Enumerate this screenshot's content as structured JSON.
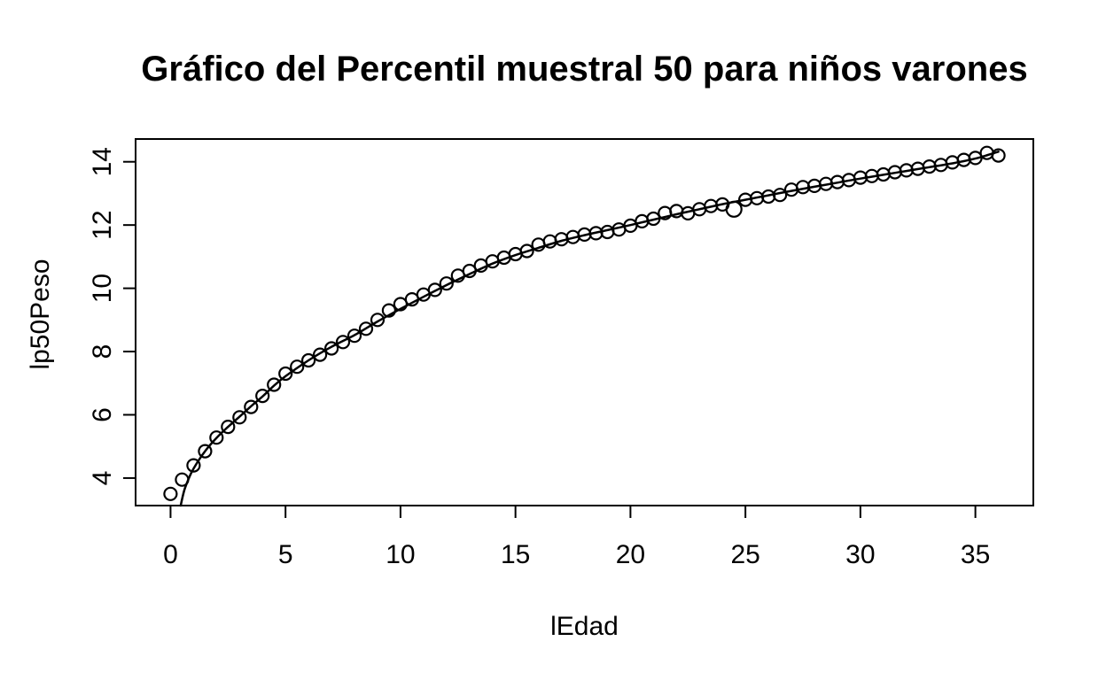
{
  "chart": {
    "title": "Gráfico del Percentil muestral 50 para niños varones",
    "xlabel": "lEdad",
    "ylabel": "lp50Peso"
  },
  "chart_data": {
    "type": "scatter",
    "title": "Gráfico del Percentil muestral 50 para niños varones",
    "xlabel": "lEdad",
    "ylabel": "lp50Peso",
    "x_ticks": [
      0,
      5,
      10,
      15,
      20,
      25,
      30,
      35
    ],
    "y_ticks": [
      4,
      6,
      8,
      10,
      12,
      14
    ],
    "xlim": [
      -1.52,
      37.52
    ],
    "ylim": [
      3.13,
      14.72
    ],
    "grid": false,
    "legend_position": "none",
    "axis_color": "#000000",
    "background": "#ffffff",
    "series": [
      {
        "name": "sample-percentile-50-points",
        "type": "points",
        "marker": "open-circle",
        "color": "#000000",
        "marker_radius": 7,
        "outlier": {
          "x": 24.5,
          "radius": 8.5
        },
        "points": [
          [
            0,
            3.5
          ],
          [
            0.5,
            3.95
          ],
          [
            1,
            4.4
          ],
          [
            1.5,
            4.85
          ],
          [
            2,
            5.28
          ],
          [
            2.5,
            5.62
          ],
          [
            3,
            5.92
          ],
          [
            3.5,
            6.25
          ],
          [
            4,
            6.6
          ],
          [
            4.5,
            6.95
          ],
          [
            5,
            7.3
          ],
          [
            5.5,
            7.52
          ],
          [
            6,
            7.72
          ],
          [
            6.5,
            7.9
          ],
          [
            7,
            8.1
          ],
          [
            7.5,
            8.3
          ],
          [
            8,
            8.5
          ],
          [
            8.5,
            8.72
          ],
          [
            9,
            9.0
          ],
          [
            9.5,
            9.3
          ],
          [
            10,
            9.5
          ],
          [
            10.5,
            9.65
          ],
          [
            11,
            9.8
          ],
          [
            11.5,
            9.95
          ],
          [
            12,
            10.15
          ],
          [
            12.5,
            10.4
          ],
          [
            13,
            10.55
          ],
          [
            13.5,
            10.72
          ],
          [
            14,
            10.85
          ],
          [
            14.5,
            10.97
          ],
          [
            15,
            11.08
          ],
          [
            15.5,
            11.18
          ],
          [
            16,
            11.38
          ],
          [
            16.5,
            11.48
          ],
          [
            17,
            11.55
          ],
          [
            17.5,
            11.62
          ],
          [
            18,
            11.7
          ],
          [
            18.5,
            11.74
          ],
          [
            19,
            11.78
          ],
          [
            19.5,
            11.86
          ],
          [
            20,
            11.98
          ],
          [
            20.5,
            12.12
          ],
          [
            21,
            12.2
          ],
          [
            21.5,
            12.38
          ],
          [
            22,
            12.44
          ],
          [
            22.5,
            12.37
          ],
          [
            23,
            12.5
          ],
          [
            23.5,
            12.6
          ],
          [
            24,
            12.65
          ],
          [
            24.5,
            12.5
          ],
          [
            25,
            12.8
          ],
          [
            25.5,
            12.85
          ],
          [
            26,
            12.9
          ],
          [
            26.5,
            12.95
          ],
          [
            27,
            13.12
          ],
          [
            27.5,
            13.2
          ],
          [
            28,
            13.24
          ],
          [
            28.5,
            13.3
          ],
          [
            29,
            13.36
          ],
          [
            29.5,
            13.42
          ],
          [
            30,
            13.5
          ],
          [
            30.5,
            13.55
          ],
          [
            31,
            13.6
          ],
          [
            31.5,
            13.67
          ],
          [
            32,
            13.73
          ],
          [
            32.5,
            13.78
          ],
          [
            33,
            13.85
          ],
          [
            33.5,
            13.9
          ],
          [
            34,
            13.98
          ],
          [
            34.5,
            14.06
          ],
          [
            35,
            14.12
          ],
          [
            35.5,
            14.28
          ],
          [
            36,
            14.2
          ]
        ]
      },
      {
        "name": "fitted-curve",
        "type": "line",
        "color": "#000000",
        "line_width": 2.5,
        "points": [
          [
            0.44,
            3.13
          ],
          [
            0.6,
            3.62
          ],
          [
            0.8,
            4.0
          ],
          [
            1,
            4.3
          ],
          [
            1.5,
            4.85
          ],
          [
            2,
            5.27
          ],
          [
            2.5,
            5.62
          ],
          [
            3,
            5.94
          ],
          [
            3.5,
            6.27
          ],
          [
            4,
            6.58
          ],
          [
            4.5,
            6.92
          ],
          [
            5,
            7.22
          ],
          [
            6,
            7.72
          ],
          [
            7,
            8.15
          ],
          [
            8,
            8.52
          ],
          [
            9,
            8.95
          ],
          [
            10,
            9.35
          ],
          [
            11,
            9.73
          ],
          [
            12,
            10.1
          ],
          [
            13,
            10.45
          ],
          [
            14,
            10.78
          ],
          [
            15,
            11.05
          ],
          [
            16,
            11.28
          ],
          [
            17,
            11.5
          ],
          [
            18,
            11.68
          ],
          [
            19,
            11.84
          ],
          [
            20,
            12.0
          ],
          [
            21,
            12.17
          ],
          [
            22,
            12.34
          ],
          [
            23,
            12.5
          ],
          [
            24,
            12.66
          ],
          [
            25,
            12.8
          ],
          [
            26,
            12.94
          ],
          [
            27,
            13.08
          ],
          [
            28,
            13.21
          ],
          [
            29,
            13.34
          ],
          [
            30,
            13.47
          ],
          [
            31,
            13.59
          ],
          [
            32,
            13.71
          ],
          [
            33,
            13.83
          ],
          [
            34,
            13.95
          ],
          [
            35,
            14.1
          ],
          [
            36,
            14.32
          ]
        ]
      }
    ]
  }
}
